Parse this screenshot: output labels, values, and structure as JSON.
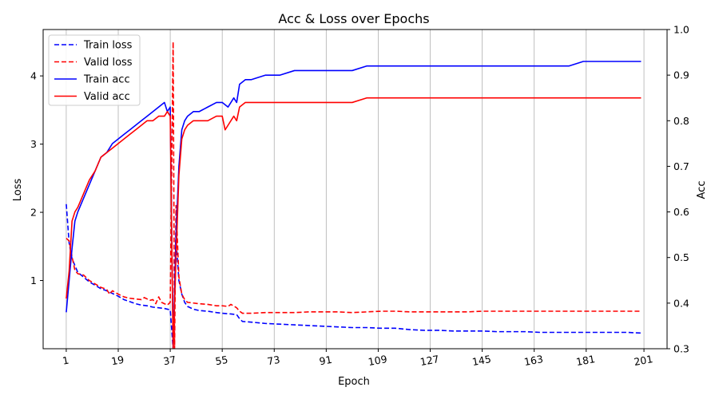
{
  "chart_data": {
    "type": "line",
    "title": "Acc & Loss over Epochs",
    "xlabel": "Epoch",
    "ylabel_left": "Loss",
    "ylabel_right": "Acc",
    "xlim": [
      -7,
      209
    ],
    "ylim_left": [
      0.0,
      4.68
    ],
    "ylim_right": [
      0.3,
      1.0
    ],
    "x_ticks": [
      1,
      19,
      37,
      55,
      73,
      91,
      109,
      127,
      145,
      163,
      181,
      201
    ],
    "y_left_ticks": [
      1,
      2,
      3,
      4
    ],
    "y_right_ticks": [
      0.3,
      0.4,
      0.5,
      0.6,
      0.7,
      0.8,
      0.9,
      1.0
    ],
    "grid": "vertical",
    "legend_position": "top-left",
    "series": [
      {
        "name": "Train loss",
        "axis": "left",
        "color": "#0000ff",
        "dash": "dashed",
        "points": [
          [
            1,
            2.12
          ],
          [
            2,
            1.55
          ],
          [
            3,
            1.32
          ],
          [
            4,
            1.22
          ],
          [
            5,
            1.12
          ],
          [
            7,
            1.05
          ],
          [
            9,
            0.98
          ],
          [
            11,
            0.93
          ],
          [
            13,
            0.88
          ],
          [
            15,
            0.85
          ],
          [
            17,
            0.81
          ],
          [
            19,
            0.77
          ],
          [
            21,
            0.72
          ],
          [
            23,
            0.69
          ],
          [
            25,
            0.66
          ],
          [
            27,
            0.64
          ],
          [
            29,
            0.63
          ],
          [
            31,
            0.61
          ],
          [
            33,
            0.6
          ],
          [
            35,
            0.59
          ],
          [
            36,
            0.58
          ],
          [
            37,
            0.57
          ],
          [
            38,
            0.0
          ],
          [
            39,
            1.6
          ],
          [
            40,
            1.0
          ],
          [
            41,
            0.8
          ],
          [
            42,
            0.68
          ],
          [
            43,
            0.62
          ],
          [
            45,
            0.58
          ],
          [
            47,
            0.56
          ],
          [
            50,
            0.55
          ],
          [
            53,
            0.53
          ],
          [
            55,
            0.52
          ],
          [
            58,
            0.51
          ],
          [
            60,
            0.5
          ],
          [
            61,
            0.44
          ],
          [
            62,
            0.4
          ],
          [
            65,
            0.39
          ],
          [
            70,
            0.37
          ],
          [
            75,
            0.36
          ],
          [
            80,
            0.35
          ],
          [
            85,
            0.34
          ],
          [
            90,
            0.33
          ],
          [
            95,
            0.32
          ],
          [
            100,
            0.31
          ],
          [
            105,
            0.31
          ],
          [
            110,
            0.3
          ],
          [
            115,
            0.3
          ],
          [
            120,
            0.28
          ],
          [
            125,
            0.27
          ],
          [
            130,
            0.27
          ],
          [
            135,
            0.26
          ],
          [
            140,
            0.26
          ],
          [
            145,
            0.26
          ],
          [
            150,
            0.25
          ],
          [
            155,
            0.25
          ],
          [
            160,
            0.25
          ],
          [
            165,
            0.24
          ],
          [
            170,
            0.24
          ],
          [
            175,
            0.24
          ],
          [
            180,
            0.24
          ],
          [
            185,
            0.24
          ],
          [
            190,
            0.24
          ],
          [
            195,
            0.24
          ],
          [
            200,
            0.23
          ]
        ]
      },
      {
        "name": "Valid loss",
        "axis": "left",
        "color": "#ff0000",
        "dash": "dashed",
        "points": [
          [
            1,
            1.62
          ],
          [
            2,
            1.58
          ],
          [
            3,
            1.35
          ],
          [
            4,
            1.15
          ],
          [
            5,
            1.1
          ],
          [
            7,
            1.08
          ],
          [
            9,
            1.0
          ],
          [
            11,
            0.95
          ],
          [
            13,
            0.9
          ],
          [
            15,
            0.87
          ],
          [
            16,
            0.8
          ],
          [
            17,
            0.85
          ],
          [
            19,
            0.8
          ],
          [
            21,
            0.76
          ],
          [
            23,
            0.74
          ],
          [
            25,
            0.73
          ],
          [
            27,
            0.72
          ],
          [
            28,
            0.75
          ],
          [
            30,
            0.71
          ],
          [
            31,
            0.72
          ],
          [
            32,
            0.66
          ],
          [
            33,
            0.76
          ],
          [
            34,
            0.68
          ],
          [
            35,
            0.66
          ],
          [
            36,
            0.64
          ],
          [
            37,
            0.68
          ],
          [
            38,
            4.5
          ],
          [
            38.5,
            0.0
          ],
          [
            39,
            2.1
          ],
          [
            40,
            1.05
          ],
          [
            41,
            0.8
          ],
          [
            42,
            0.72
          ],
          [
            43,
            0.68
          ],
          [
            45,
            0.67
          ],
          [
            47,
            0.66
          ],
          [
            50,
            0.65
          ],
          [
            53,
            0.63
          ],
          [
            55,
            0.63
          ],
          [
            57,
            0.62
          ],
          [
            58,
            0.65
          ],
          [
            60,
            0.6
          ],
          [
            61,
            0.55
          ],
          [
            62,
            0.52
          ],
          [
            65,
            0.52
          ],
          [
            70,
            0.53
          ],
          [
            75,
            0.53
          ],
          [
            80,
            0.53
          ],
          [
            85,
            0.54
          ],
          [
            90,
            0.54
          ],
          [
            95,
            0.54
          ],
          [
            100,
            0.53
          ],
          [
            105,
            0.54
          ],
          [
            110,
            0.55
          ],
          [
            115,
            0.55
          ],
          [
            120,
            0.54
          ],
          [
            125,
            0.54
          ],
          [
            130,
            0.54
          ],
          [
            135,
            0.54
          ],
          [
            140,
            0.54
          ],
          [
            145,
            0.55
          ],
          [
            150,
            0.55
          ],
          [
            155,
            0.55
          ],
          [
            160,
            0.55
          ],
          [
            165,
            0.55
          ],
          [
            170,
            0.55
          ],
          [
            175,
            0.55
          ],
          [
            180,
            0.55
          ],
          [
            185,
            0.55
          ],
          [
            190,
            0.55
          ],
          [
            195,
            0.55
          ],
          [
            200,
            0.55
          ]
        ]
      },
      {
        "name": "Train acc",
        "axis": "right",
        "color": "#0000ff",
        "dash": "solid",
        "points": [
          [
            1,
            0.38
          ],
          [
            2,
            0.45
          ],
          [
            3,
            0.52
          ],
          [
            4,
            0.58
          ],
          [
            5,
            0.6
          ],
          [
            7,
            0.63
          ],
          [
            9,
            0.66
          ],
          [
            11,
            0.69
          ],
          [
            13,
            0.72
          ],
          [
            15,
            0.73
          ],
          [
            17,
            0.75
          ],
          [
            19,
            0.76
          ],
          [
            21,
            0.77
          ],
          [
            23,
            0.78
          ],
          [
            25,
            0.79
          ],
          [
            27,
            0.8
          ],
          [
            29,
            0.81
          ],
          [
            31,
            0.82
          ],
          [
            33,
            0.83
          ],
          [
            35,
            0.84
          ],
          [
            36,
            0.82
          ],
          [
            37,
            0.83
          ],
          [
            38,
            0.3
          ],
          [
            39,
            0.55
          ],
          [
            40,
            0.7
          ],
          [
            41,
            0.78
          ],
          [
            42,
            0.8
          ],
          [
            43,
            0.81
          ],
          [
            45,
            0.82
          ],
          [
            47,
            0.82
          ],
          [
            50,
            0.83
          ],
          [
            53,
            0.84
          ],
          [
            55,
            0.84
          ],
          [
            57,
            0.83
          ],
          [
            59,
            0.85
          ],
          [
            60,
            0.84
          ],
          [
            61,
            0.88
          ],
          [
            63,
            0.89
          ],
          [
            65,
            0.89
          ],
          [
            70,
            0.9
          ],
          [
            75,
            0.9
          ],
          [
            80,
            0.91
          ],
          [
            85,
            0.91
          ],
          [
            90,
            0.91
          ],
          [
            95,
            0.91
          ],
          [
            100,
            0.91
          ],
          [
            105,
            0.92
          ],
          [
            110,
            0.92
          ],
          [
            115,
            0.92
          ],
          [
            118,
            0.92
          ],
          [
            120,
            0.92
          ],
          [
            125,
            0.92
          ],
          [
            130,
            0.92
          ],
          [
            135,
            0.92
          ],
          [
            140,
            0.92
          ],
          [
            145,
            0.92
          ],
          [
            150,
            0.92
          ],
          [
            155,
            0.92
          ],
          [
            160,
            0.92
          ],
          [
            165,
            0.92
          ],
          [
            170,
            0.92
          ],
          [
            175,
            0.92
          ],
          [
            180,
            0.93
          ],
          [
            185,
            0.93
          ],
          [
            190,
            0.93
          ],
          [
            195,
            0.93
          ],
          [
            200,
            0.93
          ]
        ]
      },
      {
        "name": "Valid acc",
        "axis": "right",
        "color": "#ff0000",
        "dash": "solid",
        "points": [
          [
            1,
            0.41
          ],
          [
            2,
            0.47
          ],
          [
            3,
            0.58
          ],
          [
            4,
            0.6
          ],
          [
            5,
            0.61
          ],
          [
            7,
            0.64
          ],
          [
            9,
            0.67
          ],
          [
            11,
            0.69
          ],
          [
            13,
            0.72
          ],
          [
            15,
            0.73
          ],
          [
            17,
            0.74
          ],
          [
            19,
            0.75
          ],
          [
            21,
            0.76
          ],
          [
            23,
            0.77
          ],
          [
            25,
            0.78
          ],
          [
            27,
            0.79
          ],
          [
            29,
            0.8
          ],
          [
            31,
            0.8
          ],
          [
            33,
            0.81
          ],
          [
            35,
            0.81
          ],
          [
            36,
            0.82
          ],
          [
            37,
            0.81
          ],
          [
            38,
            0.3
          ],
          [
            39,
            0.5
          ],
          [
            40,
            0.68
          ],
          [
            41,
            0.76
          ],
          [
            42,
            0.78
          ],
          [
            43,
            0.79
          ],
          [
            45,
            0.8
          ],
          [
            47,
            0.8
          ],
          [
            50,
            0.8
          ],
          [
            53,
            0.81
          ],
          [
            55,
            0.81
          ],
          [
            56,
            0.78
          ],
          [
            57,
            0.79
          ],
          [
            59,
            0.81
          ],
          [
            60,
            0.8
          ],
          [
            61,
            0.83
          ],
          [
            63,
            0.84
          ],
          [
            65,
            0.84
          ],
          [
            70,
            0.84
          ],
          [
            75,
            0.84
          ],
          [
            80,
            0.84
          ],
          [
            85,
            0.84
          ],
          [
            90,
            0.84
          ],
          [
            95,
            0.84
          ],
          [
            100,
            0.84
          ],
          [
            105,
            0.85
          ],
          [
            110,
            0.85
          ],
          [
            115,
            0.85
          ],
          [
            120,
            0.85
          ],
          [
            125,
            0.85
          ],
          [
            130,
            0.85
          ],
          [
            135,
            0.85
          ],
          [
            140,
            0.85
          ],
          [
            145,
            0.85
          ],
          [
            150,
            0.85
          ],
          [
            155,
            0.85
          ],
          [
            160,
            0.85
          ],
          [
            165,
            0.85
          ],
          [
            170,
            0.85
          ],
          [
            175,
            0.85
          ],
          [
            180,
            0.85
          ],
          [
            185,
            0.85
          ],
          [
            190,
            0.85
          ],
          [
            195,
            0.85
          ],
          [
            200,
            0.85
          ]
        ]
      }
    ]
  }
}
